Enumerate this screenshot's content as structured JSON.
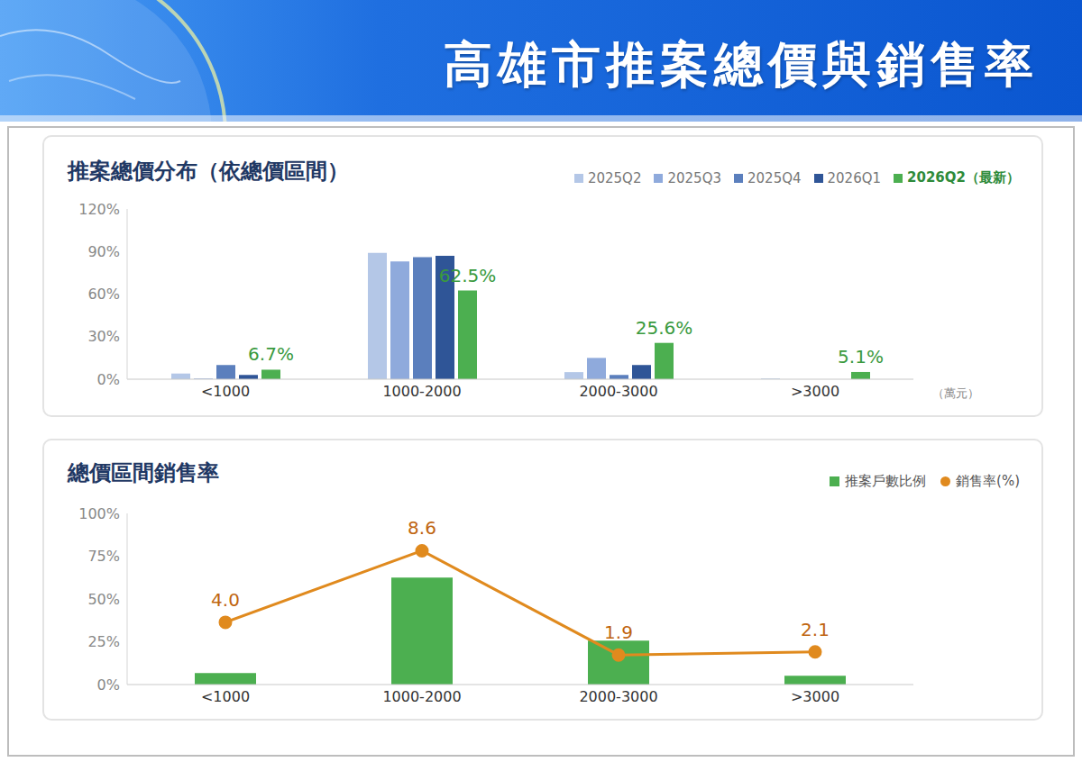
{
  "title": "高雄市推案總價與銷售率",
  "chart_data": [
    {
      "type": "bar",
      "title": "推案總價分布（依總價區間）",
      "x_label": "（萬元）",
      "categories": [
        "<1000",
        "1000-2000",
        "2000-3000",
        ">3000"
      ],
      "series": [
        {
          "name": "2025Q2",
          "color": "#b4c7e7",
          "values": [
            4,
            89,
            5,
            0.5
          ]
        },
        {
          "name": "2025Q3",
          "color": "#8faadc",
          "values": [
            0.5,
            83,
            15,
            0
          ]
        },
        {
          "name": "2025Q4",
          "color": "#5b7fbd",
          "values": [
            10,
            86,
            3,
            0
          ]
        },
        {
          "name": "2026Q1",
          "color": "#2f5597",
          "values": [
            3,
            87,
            10,
            0
          ]
        },
        {
          "name": "2026Q2（最新）",
          "color": "#4caf50",
          "values": [
            6.7,
            62.5,
            25.6,
            5.1
          ],
          "data_labels": true,
          "value_labels": [
            "6.7%",
            "62.5%",
            "25.6%",
            "5.1%"
          ]
        }
      ],
      "ylim": [
        0,
        120
      ],
      "yticks": [
        {
          "value": 0,
          "label": "0%"
        },
        {
          "value": 30,
          "label": "30%"
        },
        {
          "value": 60,
          "label": "60%"
        },
        {
          "value": 90,
          "label": "90%"
        },
        {
          "value": 120,
          "label": "120%"
        }
      ],
      "grid": false,
      "legend": "top-right"
    },
    {
      "type": "bar",
      "title": "總價區間銷售率",
      "categories": [
        "<1000",
        "1000-2000",
        "2000-3000",
        ">3000"
      ],
      "series": [
        {
          "name": "推案戶數比例",
          "type": "bar",
          "color": "#4caf50",
          "values": [
            6.7,
            62.5,
            25.6,
            5.1
          ]
        },
        {
          "name": "銷售率(%)",
          "type": "line",
          "color": "#e08a1e",
          "marker": "circle",
          "axis": "y2",
          "values": [
            4.0,
            8.6,
            1.9,
            2.1
          ],
          "data_labels": true,
          "value_labels": [
            "4.0",
            "8.6",
            "1.9",
            "2.1"
          ]
        }
      ],
      "ylim": [
        0,
        100
      ],
      "yticks": [
        {
          "value": 0,
          "label": "0%"
        },
        {
          "value": 25,
          "label": "25%"
        },
        {
          "value": 50,
          "label": "50%"
        },
        {
          "value": 75,
          "label": "75%"
        },
        {
          "value": 100,
          "label": "100%"
        }
      ],
      "y2lim": [
        0,
        11
      ],
      "grid": false,
      "legend": "top-right"
    }
  ]
}
